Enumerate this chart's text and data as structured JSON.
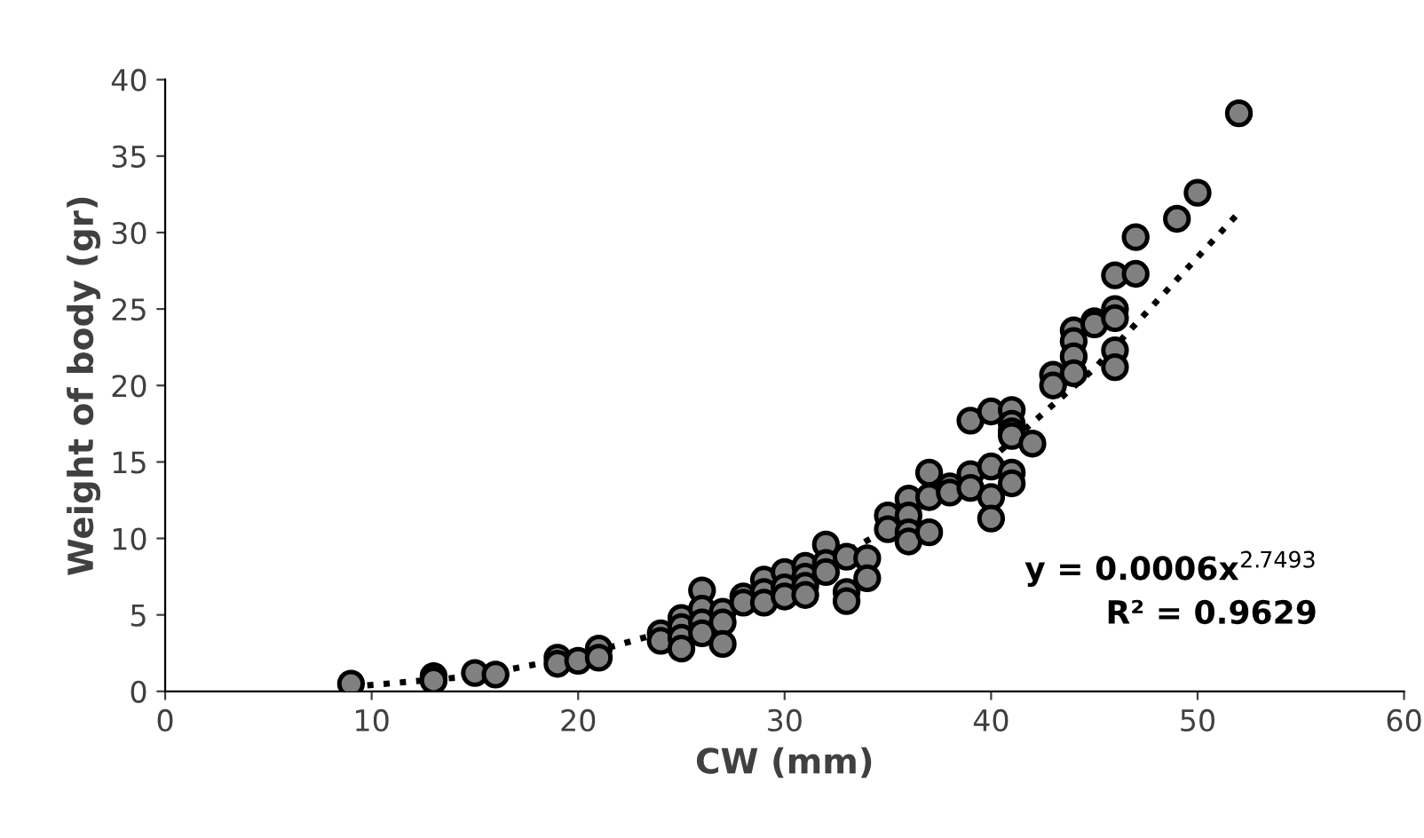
{
  "chart_data": {
    "type": "scatter",
    "xlabel": "CW (mm)",
    "ylabel": "Weight of body (gr)",
    "xlim": [
      0,
      60
    ],
    "xticks": [
      0,
      10,
      20,
      30,
      40,
      50,
      60
    ],
    "ylim": [
      0,
      40
    ],
    "yticks": [
      0,
      5,
      10,
      15,
      20,
      25,
      30,
      35,
      40
    ],
    "grid": false,
    "legend": false,
    "marker": "circle",
    "annotations": [
      "y = 0.0006x$^{2.7493}$",
      "R² = 0.9629"
    ],
    "series": [
      {
        "color": "#808080",
        "x": [
          9,
          13,
          13,
          15,
          16,
          19,
          19,
          20,
          21,
          21,
          24,
          24,
          25,
          25,
          25,
          25,
          26,
          26,
          26,
          26,
          27,
          27,
          27,
          28,
          28,
          29,
          29,
          29,
          30,
          30,
          30,
          31,
          31,
          31,
          31,
          32,
          32,
          32,
          33,
          33,
          33,
          34,
          34,
          35,
          35,
          36,
          36,
          36,
          36,
          37,
          37,
          37,
          38,
          38,
          39,
          39,
          39,
          40,
          40,
          40,
          40,
          41,
          41,
          41,
          41,
          41,
          41,
          42,
          43,
          43,
          44,
          44,
          44,
          44,
          45,
          45,
          46,
          46,
          46,
          46,
          46,
          47,
          47,
          49,
          50,
          52
        ],
        "values": [
          0.5,
          1.0,
          0.7,
          1.2,
          1.1,
          2.2,
          1.8,
          2.0,
          2.8,
          2.2,
          3.8,
          3.3,
          4.8,
          4.2,
          3.5,
          2.8,
          6.6,
          5.4,
          4.5,
          3.8,
          5.2,
          4.5,
          3.1,
          6.2,
          5.8,
          7.3,
          6.5,
          5.8,
          7.8,
          6.8,
          6.2,
          8.2,
          7.5,
          6.9,
          6.3,
          9.6,
          8.4,
          7.8,
          8.8,
          6.5,
          5.9,
          8.7,
          7.4,
          11.5,
          10.6,
          12.6,
          11.5,
          10.4,
          9.8,
          14.3,
          12.7,
          10.4,
          13.4,
          13.0,
          17.7,
          14.2,
          13.3,
          18.3,
          14.7,
          12.7,
          11.3,
          18.4,
          17.5,
          17.0,
          16.7,
          14.3,
          13.6,
          16.2,
          20.7,
          20.0,
          23.6,
          22.9,
          21.9,
          20.8,
          24.2,
          24.0,
          27.2,
          25.0,
          24.4,
          22.3,
          21.2,
          29.7,
          27.3,
          30.9,
          32.6,
          37.8
        ]
      },
      {
        "type": "line",
        "color": "#000000",
        "line_style": "dotted",
        "marker": "none",
        "x": [
          9,
          15,
          20,
          25,
          30,
          35,
          40,
          45,
          52
        ],
        "values": [
          0.3,
          1.0,
          2.3,
          4.2,
          6.9,
          10.6,
          15.2,
          21.1,
          31.3
        ]
      }
    ]
  }
}
